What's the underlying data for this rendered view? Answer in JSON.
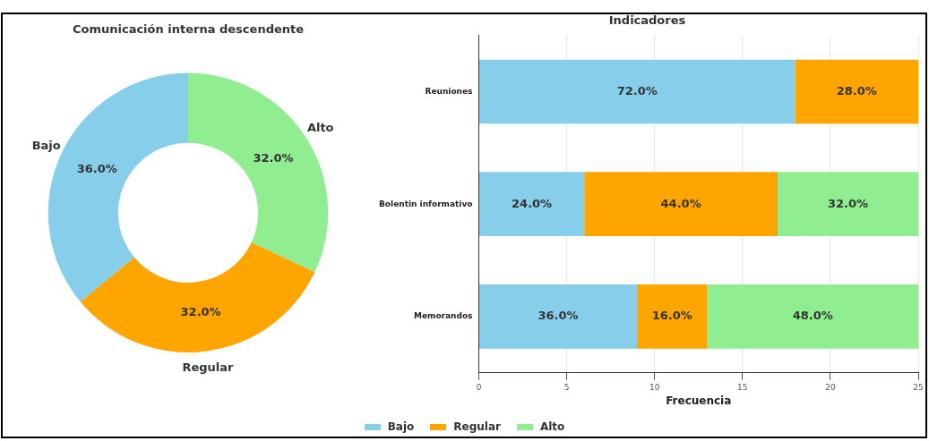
{
  "chart_data": [
    {
      "type": "donut",
      "title": "Comunicación interna descendente",
      "categories": [
        "Bajo",
        "Regular",
        "Alto"
      ],
      "values": [
        36,
        32,
        32
      ],
      "colors": [
        "#87ceeb",
        "#ffa500",
        "#90ee90"
      ],
      "value_labels": [
        "36.0%",
        "32.0%",
        "32.0%"
      ],
      "legend": false
    },
    {
      "type": "bar",
      "orientation": "horizontal",
      "stacked": true,
      "title": "Indicadores",
      "xlabel": "Frecuencia",
      "categories": [
        "Reuniones",
        "Bolentin informativo",
        "Memorandos"
      ],
      "series": [
        {
          "name": "Bajo",
          "color": "#87ceeb",
          "values": [
            18,
            6,
            9
          ]
        },
        {
          "name": "Regular",
          "color": "#ffa500",
          "values": [
            7,
            11,
            4
          ]
        },
        {
          "name": "Alto",
          "color": "#90ee90",
          "values": [
            0,
            8,
            12
          ]
        }
      ],
      "annotations": [
        "72.0%",
        "28.0%",
        "24.0%",
        "44.0%",
        "32.0%",
        "36.0%",
        "16.0%",
        "48.0%"
      ],
      "xlim": [
        0,
        25
      ],
      "xticks": [
        0,
        5,
        10,
        15,
        20,
        25
      ],
      "grid": "x",
      "legend": "bottom"
    }
  ]
}
